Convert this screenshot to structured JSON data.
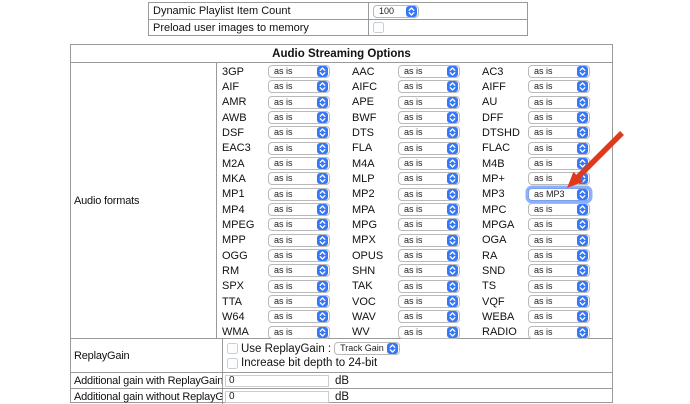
{
  "colors": {
    "accent": "#3577f6",
    "table_border": "#9a9a9a",
    "arrow": "#e03a1c"
  },
  "top_table": {
    "rows": [
      {
        "label": "Dynamic Playlist Item Count",
        "control": "select",
        "value": "100"
      },
      {
        "label": "Preload user images to memory",
        "control": "checkbox",
        "checked": false
      }
    ]
  },
  "audio": {
    "title": "Audio Streaming Options",
    "formats_label": "Audio formats",
    "formats": [
      {
        "name": "3GP",
        "value": "as is"
      },
      {
        "name": "AAC",
        "value": "as is"
      },
      {
        "name": "AC3",
        "value": "as is"
      },
      {
        "name": "AIF",
        "value": "as is"
      },
      {
        "name": "AIFC",
        "value": "as is"
      },
      {
        "name": "AIFF",
        "value": "as is"
      },
      {
        "name": "AMR",
        "value": "as is"
      },
      {
        "name": "APE",
        "value": "as is"
      },
      {
        "name": "AU",
        "value": "as is"
      },
      {
        "name": "AWB",
        "value": "as is"
      },
      {
        "name": "BWF",
        "value": "as is"
      },
      {
        "name": "DFF",
        "value": "as is"
      },
      {
        "name": "DSF",
        "value": "as is"
      },
      {
        "name": "DTS",
        "value": "as is"
      },
      {
        "name": "DTSHD",
        "value": "as is"
      },
      {
        "name": "EAC3",
        "value": "as is"
      },
      {
        "name": "FLA",
        "value": "as is"
      },
      {
        "name": "FLAC",
        "value": "as is"
      },
      {
        "name": "M2A",
        "value": "as is"
      },
      {
        "name": "M4A",
        "value": "as is"
      },
      {
        "name": "M4B",
        "value": "as is"
      },
      {
        "name": "MKA",
        "value": "as is"
      },
      {
        "name": "MLP",
        "value": "as is"
      },
      {
        "name": "MP+",
        "value": "as is"
      },
      {
        "name": "MP1",
        "value": "as is"
      },
      {
        "name": "MP2",
        "value": "as is"
      },
      {
        "name": "MP3",
        "value": "as MP3",
        "focused": true
      },
      {
        "name": "MP4",
        "value": "as is"
      },
      {
        "name": "MPA",
        "value": "as is"
      },
      {
        "name": "MPC",
        "value": "as is"
      },
      {
        "name": "MPEG",
        "value": "as is"
      },
      {
        "name": "MPG",
        "value": "as is"
      },
      {
        "name": "MPGA",
        "value": "as is"
      },
      {
        "name": "MPP",
        "value": "as is"
      },
      {
        "name": "MPX",
        "value": "as is"
      },
      {
        "name": "OGA",
        "value": "as is"
      },
      {
        "name": "OGG",
        "value": "as is"
      },
      {
        "name": "OPUS",
        "value": "as is"
      },
      {
        "name": "RA",
        "value": "as is"
      },
      {
        "name": "RM",
        "value": "as is"
      },
      {
        "name": "SHN",
        "value": "as is"
      },
      {
        "name": "SND",
        "value": "as is"
      },
      {
        "name": "SPX",
        "value": "as is"
      },
      {
        "name": "TAK",
        "value": "as is"
      },
      {
        "name": "TS",
        "value": "as is"
      },
      {
        "name": "TTA",
        "value": "as is"
      },
      {
        "name": "VOC",
        "value": "as is"
      },
      {
        "name": "VQF",
        "value": "as is"
      },
      {
        "name": "W64",
        "value": "as is"
      },
      {
        "name": "WAV",
        "value": "as is"
      },
      {
        "name": "WEBA",
        "value": "as is"
      },
      {
        "name": "WMA",
        "value": "as is"
      },
      {
        "name": "WV",
        "value": "as is"
      },
      {
        "name": "RADIO",
        "value": "as is"
      }
    ],
    "replaygain": {
      "label": "ReplayGain",
      "use_label": "Use ReplayGain :",
      "use_checked": false,
      "mode_value": "Track Gain",
      "bitdepth_label": "Increase bit depth to 24-bit",
      "bitdepth_checked": false
    },
    "gain_with": {
      "label": "Additional gain with ReplayGain",
      "value": "0",
      "unit": "dB"
    },
    "gain_without": {
      "label": "Additional gain without ReplayGain",
      "value": "0",
      "unit": "dB"
    }
  }
}
